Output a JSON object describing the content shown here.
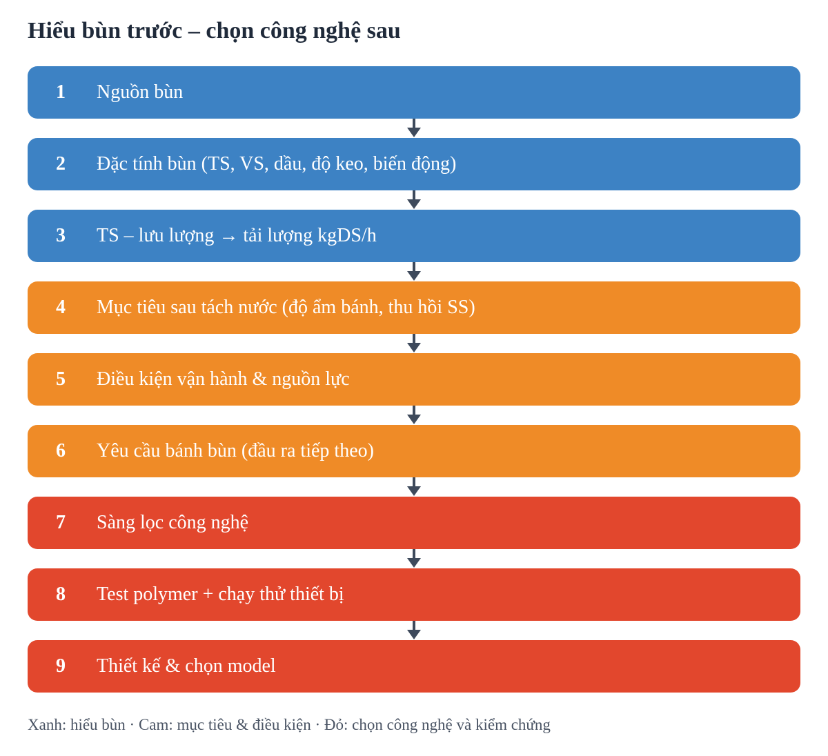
{
  "title": "Hiểu bùn trước – chọn công nghệ sau",
  "colors": {
    "blue": "#3d82c4",
    "orange": "#ef8b27",
    "red": "#e2472d",
    "arrow": "#3e4a5c"
  },
  "steps": [
    {
      "number": "1",
      "label": "Nguồn bùn",
      "group": "blue"
    },
    {
      "number": "2",
      "label": "Đặc tính bùn (TS, VS, dầu, độ keo, biến động)",
      "group": "blue"
    },
    {
      "number": "3",
      "label": "TS – lưu lượng → tải lượng kgDS/h",
      "group": "blue"
    },
    {
      "number": "4",
      "label": "Mục tiêu sau tách nước (độ ẩm bánh, thu hồi SS)",
      "group": "orange"
    },
    {
      "number": "5",
      "label": "Điều kiện vận hành & nguồn lực",
      "group": "orange"
    },
    {
      "number": "6",
      "label": "Yêu cầu bánh bùn (đầu ra tiếp theo)",
      "group": "orange"
    },
    {
      "number": "7",
      "label": "Sàng lọc công nghệ",
      "group": "red"
    },
    {
      "number": "8",
      "label": "Test polymer + chạy thử thiết bị",
      "group": "red"
    },
    {
      "number": "9",
      "label": "Thiết kế & chọn model",
      "group": "red"
    }
  ],
  "legend": "Xanh: hiểu bùn · Cam: mục tiêu & điều kiện · Đỏ: chọn công nghệ và kiểm chứng"
}
